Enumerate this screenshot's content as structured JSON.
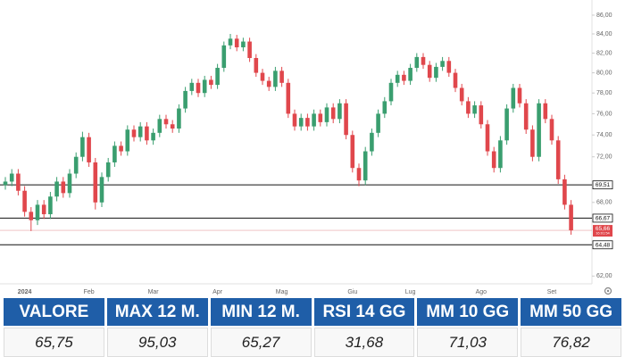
{
  "chart_data": {
    "type": "candlestick",
    "log_scale": true,
    "ylim": [
      61.4,
      87.65
    ],
    "yticks": [
      {
        "value": 86,
        "label": "86,00"
      },
      {
        "value": 84,
        "label": "84,00"
      },
      {
        "value": 82,
        "label": "82,00"
      },
      {
        "value": 80,
        "label": "80,00"
      },
      {
        "value": 78,
        "label": "78,00"
      },
      {
        "value": 76,
        "label": "76,00"
      },
      {
        "value": 74,
        "label": "74,00"
      },
      {
        "value": 72,
        "label": "72,00"
      },
      {
        "value": 68,
        "label": "68,00"
      },
      {
        "value": 62,
        "label": "62,00"
      }
    ],
    "categories": [
      null,
      null,
      null,
      "2024",
      null,
      null,
      null,
      null,
      null,
      null,
      null,
      null,
      null,
      "Feb",
      null,
      null,
      null,
      null,
      null,
      null,
      null,
      null,
      null,
      "Mar",
      null,
      null,
      null,
      null,
      null,
      null,
      null,
      null,
      null,
      "Apr",
      null,
      null,
      null,
      null,
      null,
      null,
      null,
      null,
      null,
      "Mag",
      null,
      null,
      null,
      null,
      null,
      null,
      null,
      null,
      null,
      null,
      "Giu",
      null,
      null,
      null,
      null,
      null,
      null,
      null,
      null,
      "Lug",
      null,
      null,
      null,
      null,
      null,
      null,
      null,
      null,
      null,
      null,
      "Ago",
      null,
      null,
      null,
      null,
      null,
      null,
      null,
      null,
      null,
      null,
      "Set",
      null,
      null,
      null
    ],
    "open": [
      69.5,
      69.8,
      70.5,
      69.0,
      67.2,
      66.5,
      67.8,
      67.0,
      68.5,
      69.8,
      68.8,
      70.5,
      72.0,
      73.8,
      71.5,
      68.0,
      70.2,
      71.5,
      73.0,
      72.5,
      74.5,
      73.8,
      74.8,
      73.5,
      74.2,
      75.5,
      75.0,
      74.6,
      76.5,
      78.2,
      79.0,
      78.0,
      79.3,
      78.8,
      80.5,
      82.8,
      83.5,
      82.6,
      83.2,
      81.5,
      80.0,
      79.2,
      78.6,
      80.2,
      79.0,
      76.0,
      74.8,
      75.6,
      74.8,
      76.0,
      75.2,
      76.6,
      75.5,
      77.0,
      74.0,
      71.0,
      69.9,
      72.5,
      74.2,
      76.0,
      77.2,
      79.0,
      79.8,
      79.2,
      80.5,
      81.6,
      80.8,
      79.5,
      80.6,
      81.2,
      80.0,
      78.5,
      77.2,
      76.0,
      76.8,
      75.0,
      72.5,
      71.0,
      73.5,
      76.5,
      78.5,
      77.0,
      74.5,
      72.0,
      77.0,
      75.5,
      73.5,
      70.0,
      67.8
    ],
    "high": [
      70.2,
      70.9,
      70.9,
      69.4,
      67.6,
      68.2,
      68.2,
      68.9,
      70.2,
      70.2,
      70.9,
      72.4,
      74.3,
      74.2,
      71.9,
      70.6,
      71.9,
      73.4,
      73.4,
      74.9,
      74.9,
      75.2,
      75.2,
      74.6,
      75.9,
      75.9,
      75.4,
      76.9,
      78.6,
      79.4,
      79.4,
      79.7,
      79.7,
      80.9,
      83.2,
      84.0,
      83.9,
      83.6,
      83.6,
      81.9,
      80.4,
      79.6,
      80.6,
      80.6,
      79.4,
      76.4,
      76.0,
      76.0,
      76.4,
      76.4,
      77.0,
      77.0,
      77.4,
      77.4,
      74.4,
      71.4,
      72.9,
      74.6,
      76.4,
      77.6,
      79.4,
      80.2,
      80.2,
      80.9,
      82.0,
      82.0,
      81.2,
      81.0,
      81.6,
      81.6,
      80.4,
      78.9,
      77.6,
      77.2,
      77.2,
      75.4,
      72.9,
      73.9,
      76.9,
      78.9,
      78.9,
      77.4,
      74.9,
      77.4,
      77.4,
      75.9,
      73.9,
      70.4,
      68.2
    ],
    "low": [
      69.1,
      69.4,
      68.6,
      66.8,
      65.6,
      66.1,
      66.6,
      66.6,
      68.1,
      68.4,
      68.4,
      70.1,
      71.6,
      71.1,
      67.4,
      67.6,
      69.8,
      71.1,
      72.1,
      72.1,
      73.4,
      73.4,
      73.1,
      73.1,
      73.8,
      74.6,
      74.2,
      74.2,
      76.1,
      77.8,
      77.6,
      77.6,
      78.4,
      78.4,
      80.1,
      82.4,
      82.2,
      82.2,
      81.1,
      79.6,
      78.8,
      78.2,
      78.2,
      78.6,
      75.6,
      74.4,
      74.4,
      74.4,
      74.4,
      74.8,
      74.8,
      75.1,
      75.1,
      73.6,
      70.6,
      69.4,
      69.5,
      72.1,
      73.8,
      75.6,
      76.8,
      78.6,
      78.8,
      78.8,
      80.1,
      80.4,
      79.1,
      79.1,
      80.2,
      79.6,
      78.1,
      76.8,
      75.6,
      75.6,
      74.6,
      72.1,
      70.6,
      70.6,
      73.1,
      76.1,
      76.6,
      74.1,
      71.6,
      71.6,
      75.1,
      73.1,
      69.6,
      67.4,
      65.3
    ],
    "close": [
      69.8,
      70.5,
      69.0,
      67.2,
      66.5,
      67.8,
      67.0,
      68.5,
      69.8,
      68.8,
      70.5,
      72.0,
      73.8,
      71.5,
      68.0,
      70.2,
      71.5,
      73.0,
      72.5,
      74.5,
      73.8,
      74.8,
      73.5,
      74.2,
      75.5,
      75.0,
      74.6,
      76.5,
      78.2,
      79.0,
      78.0,
      79.3,
      78.8,
      80.5,
      82.8,
      83.5,
      82.6,
      83.2,
      81.5,
      80.0,
      79.2,
      78.6,
      80.2,
      79.0,
      76.0,
      74.8,
      75.6,
      74.8,
      76.0,
      75.2,
      76.6,
      75.5,
      77.0,
      74.0,
      71.0,
      69.9,
      72.5,
      74.2,
      76.0,
      77.2,
      79.0,
      79.8,
      79.2,
      80.5,
      81.6,
      80.8,
      79.5,
      80.6,
      81.2,
      80.0,
      78.5,
      77.2,
      76.0,
      76.8,
      75.0,
      72.5,
      71.0,
      73.5,
      76.5,
      78.5,
      77.0,
      74.5,
      72.0,
      77.0,
      75.5,
      73.5,
      70.0,
      67.8,
      65.66
    ],
    "up_color": "#3a9e6f",
    "down_color": "#e0474c",
    "levels": [
      {
        "value": 69.51,
        "label": "69,51"
      },
      {
        "value": 66.67,
        "label": "66,67"
      },
      {
        "value": 64.48,
        "label": "64,48"
      }
    ],
    "last_price": {
      "value": 65.66,
      "label": "65,66",
      "time": "16:01:54"
    }
  },
  "table": {
    "header": [
      "VALORE",
      "MAX 12 M.",
      "MIN 12 M.",
      "RSI 14 GG",
      "MM 10 GG",
      "MM 50 GG"
    ],
    "values": [
      "65,75",
      "95,03",
      "65,27",
      "31,68",
      "71,03",
      "76,82"
    ]
  }
}
